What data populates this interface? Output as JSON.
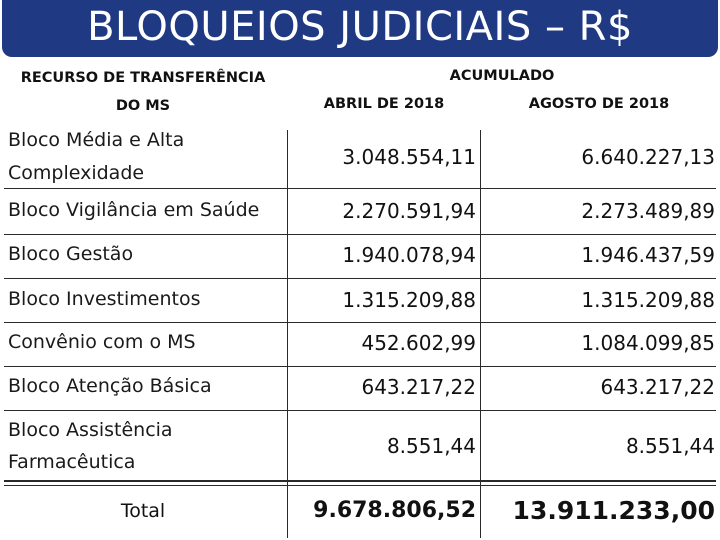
{
  "title": "BLOQUEIOS JUDICIAIS – R$",
  "header": {
    "col1_line1": "RECURSO DE TRANSFERÊNCIA",
    "col1_line2": "DO MS",
    "group": "ACUMULADO",
    "col2": "ABRIL DE 2018",
    "col3": "AGOSTO DE 2018"
  },
  "rows": [
    {
      "label_line1": "Bloco Média e Alta",
      "label_line2": "Complexidade",
      "abril": "3.048.554,11",
      "agosto": "6.640.227,13"
    },
    {
      "label": "Bloco Vigilância em Saúde",
      "abril": "2.270.591,94",
      "agosto": "2.273.489,89"
    },
    {
      "label": "Bloco Gestão",
      "abril": "1.940.078,94",
      "agosto": "1.946.437,59"
    },
    {
      "label": "Bloco Investimentos",
      "abril": "1.315.209,88",
      "agosto": "1.315.209,88"
    },
    {
      "label": "Convênio com o MS",
      "abril": "452.602,99",
      "agosto": "1.084.099,85"
    },
    {
      "label": "Bloco Atenção Básica",
      "abril": "643.217,22",
      "agosto": "643.217,22"
    },
    {
      "label_line1": "Bloco Assistência",
      "label_line2": "Farmacêutica",
      "abril": "8.551,44",
      "agosto": "8.551,44"
    }
  ],
  "total": {
    "label": "Total",
    "abril": "9.678.806,52",
    "agosto": "13.911.233,00"
  },
  "colors": {
    "title_bg": "#1f3a82",
    "title_text": "#ffffff",
    "rule": "#2a2a2a"
  }
}
